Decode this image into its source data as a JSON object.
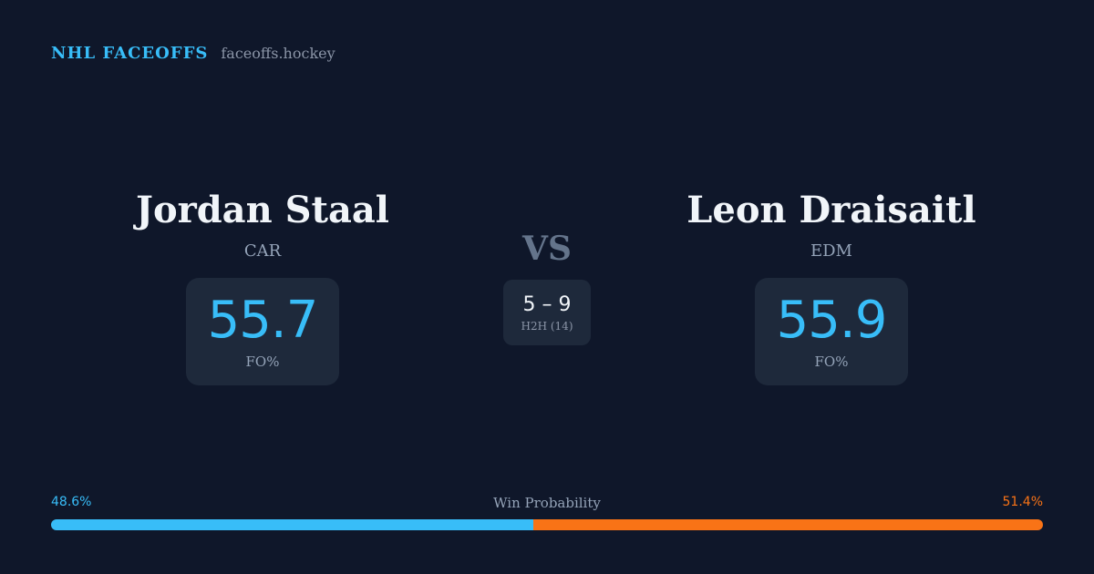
{
  "brand": {
    "name": "NHL FACEOFFS",
    "url": "faceoffs.hockey",
    "accent_color": "#38bdf8"
  },
  "player_left": {
    "name": "Jordan Staal",
    "team": "CAR",
    "fo_pct": "55.7",
    "fo_label": "FO%"
  },
  "player_right": {
    "name": "Leon Draisaitl",
    "team": "EDM",
    "fo_pct": "55.9",
    "fo_label": "FO%"
  },
  "matchup": {
    "vs_label": "VS",
    "h2h_score": "5 – 9",
    "h2h_label": "H2H (14)"
  },
  "win_probability": {
    "title": "Win Probability",
    "left_label": "48.6%",
    "right_label": "51.4%",
    "left_value": 48.6,
    "right_value": 51.4,
    "left_color": "#38bdf8",
    "right_color": "#f97316"
  }
}
